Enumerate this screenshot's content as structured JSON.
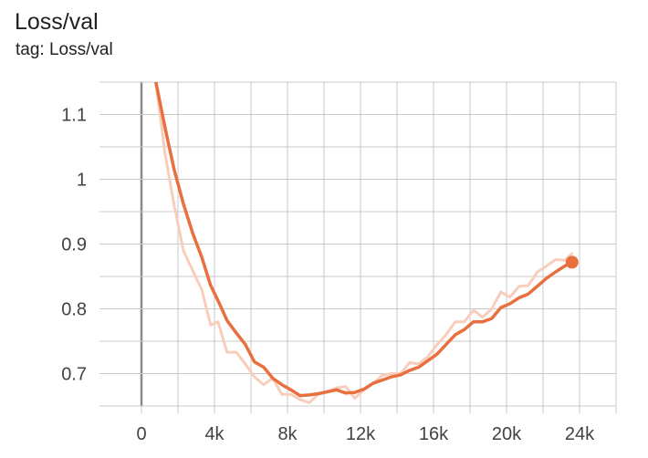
{
  "card": {
    "title": "Loss/val",
    "tag": "tag: Loss/val"
  },
  "colors": {
    "smoothed": "#e8703f",
    "raw": "#f9cdbb",
    "grid": "#c8c8c8",
    "zero_line": "#8a8a8a",
    "tick_text": "#424242"
  },
  "chart_data": {
    "type": "line",
    "title": "Loss/val",
    "xlabel": "",
    "ylabel": "",
    "xlim": [
      -1900,
      26000
    ],
    "ylim": [
      0.65,
      1.15
    ],
    "grid": true,
    "legend": "none",
    "x_ticks": [
      {
        "value": 0,
        "label": "0"
      },
      {
        "value": 4000,
        "label": "4k"
      },
      {
        "value": 8000,
        "label": "8k"
      },
      {
        "value": 12000,
        "label": "12k"
      },
      {
        "value": 16000,
        "label": "16k"
      },
      {
        "value": 20000,
        "label": "20k"
      },
      {
        "value": 24000,
        "label": "24k"
      }
    ],
    "x_minor_ticks": [
      -2000,
      2000,
      6000,
      10000,
      14000,
      18000,
      22000,
      26000
    ],
    "y_ticks": [
      {
        "value": 0.7,
        "label": "0.7"
      },
      {
        "value": 0.8,
        "label": "0.8"
      },
      {
        "value": 0.9,
        "label": "0.9"
      },
      {
        "value": 1.0,
        "label": "1"
      },
      {
        "value": 1.1,
        "label": "1.1"
      }
    ],
    "y_minor_ticks": [
      0.65,
      0.75,
      0.85,
      0.95,
      1.05,
      1.15
    ],
    "series": [
      {
        "role": "raw",
        "x": [
          790,
          1290,
          1790,
          2300,
          2790,
          3300,
          3790,
          4190,
          4690,
          5190,
          5690,
          6190,
          6690,
          7190,
          7690,
          8190,
          8690,
          9190,
          9690,
          10190,
          10690,
          11190,
          11690,
          12190,
          12690,
          13190,
          13690,
          14190,
          14690,
          15190,
          15690,
          16190,
          16690,
          17190,
          17690,
          18190,
          18690,
          19190,
          19690,
          20190,
          20690,
          21190,
          21690,
          22190,
          22690,
          23190,
          23590
        ],
        "y": [
          1.15,
          1.04,
          0.96,
          0.89,
          0.86,
          0.83,
          0.775,
          0.78,
          0.733,
          0.733,
          0.715,
          0.695,
          0.683,
          0.693,
          0.668,
          0.668,
          0.66,
          0.655,
          0.668,
          0.672,
          0.678,
          0.68,
          0.662,
          0.675,
          0.685,
          0.697,
          0.7,
          0.7,
          0.717,
          0.715,
          0.726,
          0.745,
          0.76,
          0.78,
          0.78,
          0.798,
          0.787,
          0.8,
          0.826,
          0.818,
          0.835,
          0.836,
          0.857,
          0.866,
          0.876,
          0.875,
          0.885
        ]
      },
      {
        "role": "smoothed",
        "x": [
          790,
          1290,
          1790,
          2300,
          2790,
          3300,
          3790,
          4190,
          4690,
          5190,
          5690,
          6190,
          6690,
          7190,
          7690,
          8190,
          8690,
          9190,
          9690,
          10190,
          10690,
          11190,
          11690,
          12190,
          12690,
          13190,
          13690,
          14190,
          14690,
          15190,
          15690,
          16190,
          16690,
          17190,
          17690,
          18190,
          18690,
          19190,
          19690,
          20190,
          20690,
          21190,
          21690,
          22190,
          22690,
          23190,
          23590
        ],
        "y": [
          1.15,
          1.08,
          1.015,
          0.962,
          0.918,
          0.88,
          0.836,
          0.813,
          0.782,
          0.763,
          0.745,
          0.718,
          0.71,
          0.693,
          0.683,
          0.675,
          0.666,
          0.667,
          0.669,
          0.672,
          0.675,
          0.67,
          0.671,
          0.676,
          0.685,
          0.69,
          0.695,
          0.698,
          0.705,
          0.71,
          0.72,
          0.73,
          0.745,
          0.76,
          0.768,
          0.78,
          0.78,
          0.785,
          0.802,
          0.808,
          0.817,
          0.823,
          0.835,
          0.847,
          0.857,
          0.866,
          0.872
        ]
      }
    ],
    "last_point": {
      "x": 23590,
      "y": 0.872
    }
  }
}
